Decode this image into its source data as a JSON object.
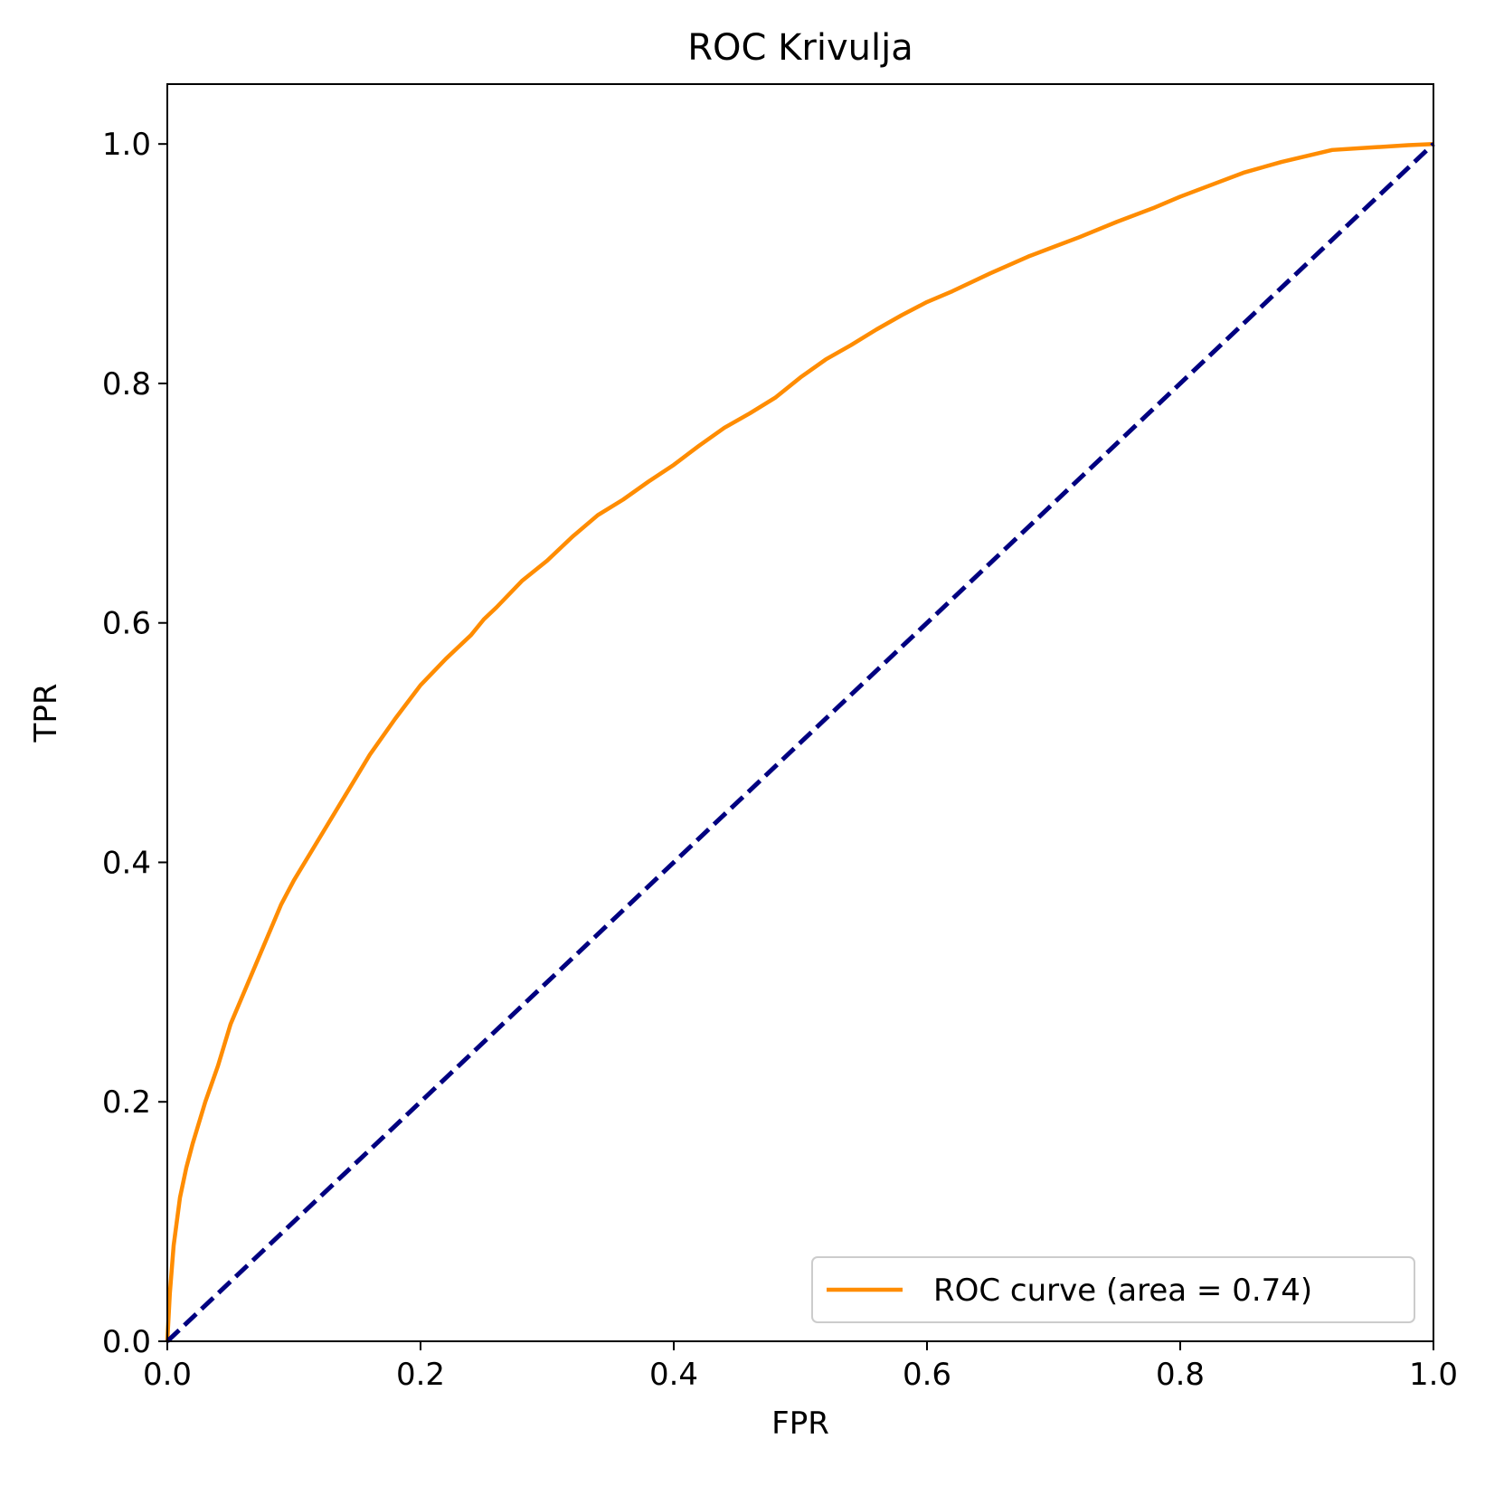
{
  "chart_data": {
    "type": "line",
    "title": "ROC Krivulja",
    "xlabel": "FPR",
    "ylabel": "TPR",
    "xlim": [
      0.0,
      1.0
    ],
    "ylim": [
      0.0,
      1.05
    ],
    "x_ticks": [
      "0.0",
      "0.2",
      "0.4",
      "0.6",
      "0.8",
      "1.0"
    ],
    "y_ticks": [
      "0.0",
      "0.2",
      "0.4",
      "0.6",
      "0.8",
      "1.0"
    ],
    "x_tick_values": [
      0.0,
      0.2,
      0.4,
      0.6,
      0.8,
      1.0
    ],
    "y_tick_values": [
      0.0,
      0.2,
      0.4,
      0.6,
      0.8,
      1.0
    ],
    "grid": false,
    "legend_position": "lower-right",
    "series": [
      {
        "name": "ROC curve (area = 0.74)",
        "color": "#ff8c00",
        "style": "solid",
        "x": [
          0.0,
          0.002,
          0.005,
          0.01,
          0.015,
          0.02,
          0.03,
          0.04,
          0.05,
          0.06,
          0.07,
          0.08,
          0.09,
          0.1,
          0.12,
          0.14,
          0.16,
          0.18,
          0.2,
          0.22,
          0.24,
          0.25,
          0.26,
          0.28,
          0.3,
          0.32,
          0.34,
          0.36,
          0.38,
          0.4,
          0.42,
          0.44,
          0.46,
          0.48,
          0.5,
          0.52,
          0.54,
          0.56,
          0.58,
          0.6,
          0.62,
          0.65,
          0.68,
          0.7,
          0.72,
          0.75,
          0.78,
          0.8,
          0.83,
          0.85,
          0.88,
          0.9,
          0.92,
          0.95,
          0.98,
          1.0
        ],
        "y": [
          0.0,
          0.04,
          0.08,
          0.12,
          0.145,
          0.165,
          0.2,
          0.23,
          0.265,
          0.29,
          0.315,
          0.34,
          0.365,
          0.385,
          0.42,
          0.455,
          0.49,
          0.52,
          0.548,
          0.57,
          0.59,
          0.603,
          0.613,
          0.635,
          0.652,
          0.672,
          0.69,
          0.703,
          0.718,
          0.732,
          0.748,
          0.763,
          0.775,
          0.788,
          0.805,
          0.82,
          0.832,
          0.845,
          0.857,
          0.868,
          0.877,
          0.892,
          0.906,
          0.914,
          0.922,
          0.935,
          0.947,
          0.956,
          0.968,
          0.976,
          0.985,
          0.99,
          0.995,
          0.997,
          0.999,
          1.0
        ]
      },
      {
        "name": "",
        "color": "#000080",
        "style": "dashed",
        "x": [
          0.0,
          1.0
        ],
        "y": [
          0.0,
          1.0
        ]
      }
    ]
  }
}
